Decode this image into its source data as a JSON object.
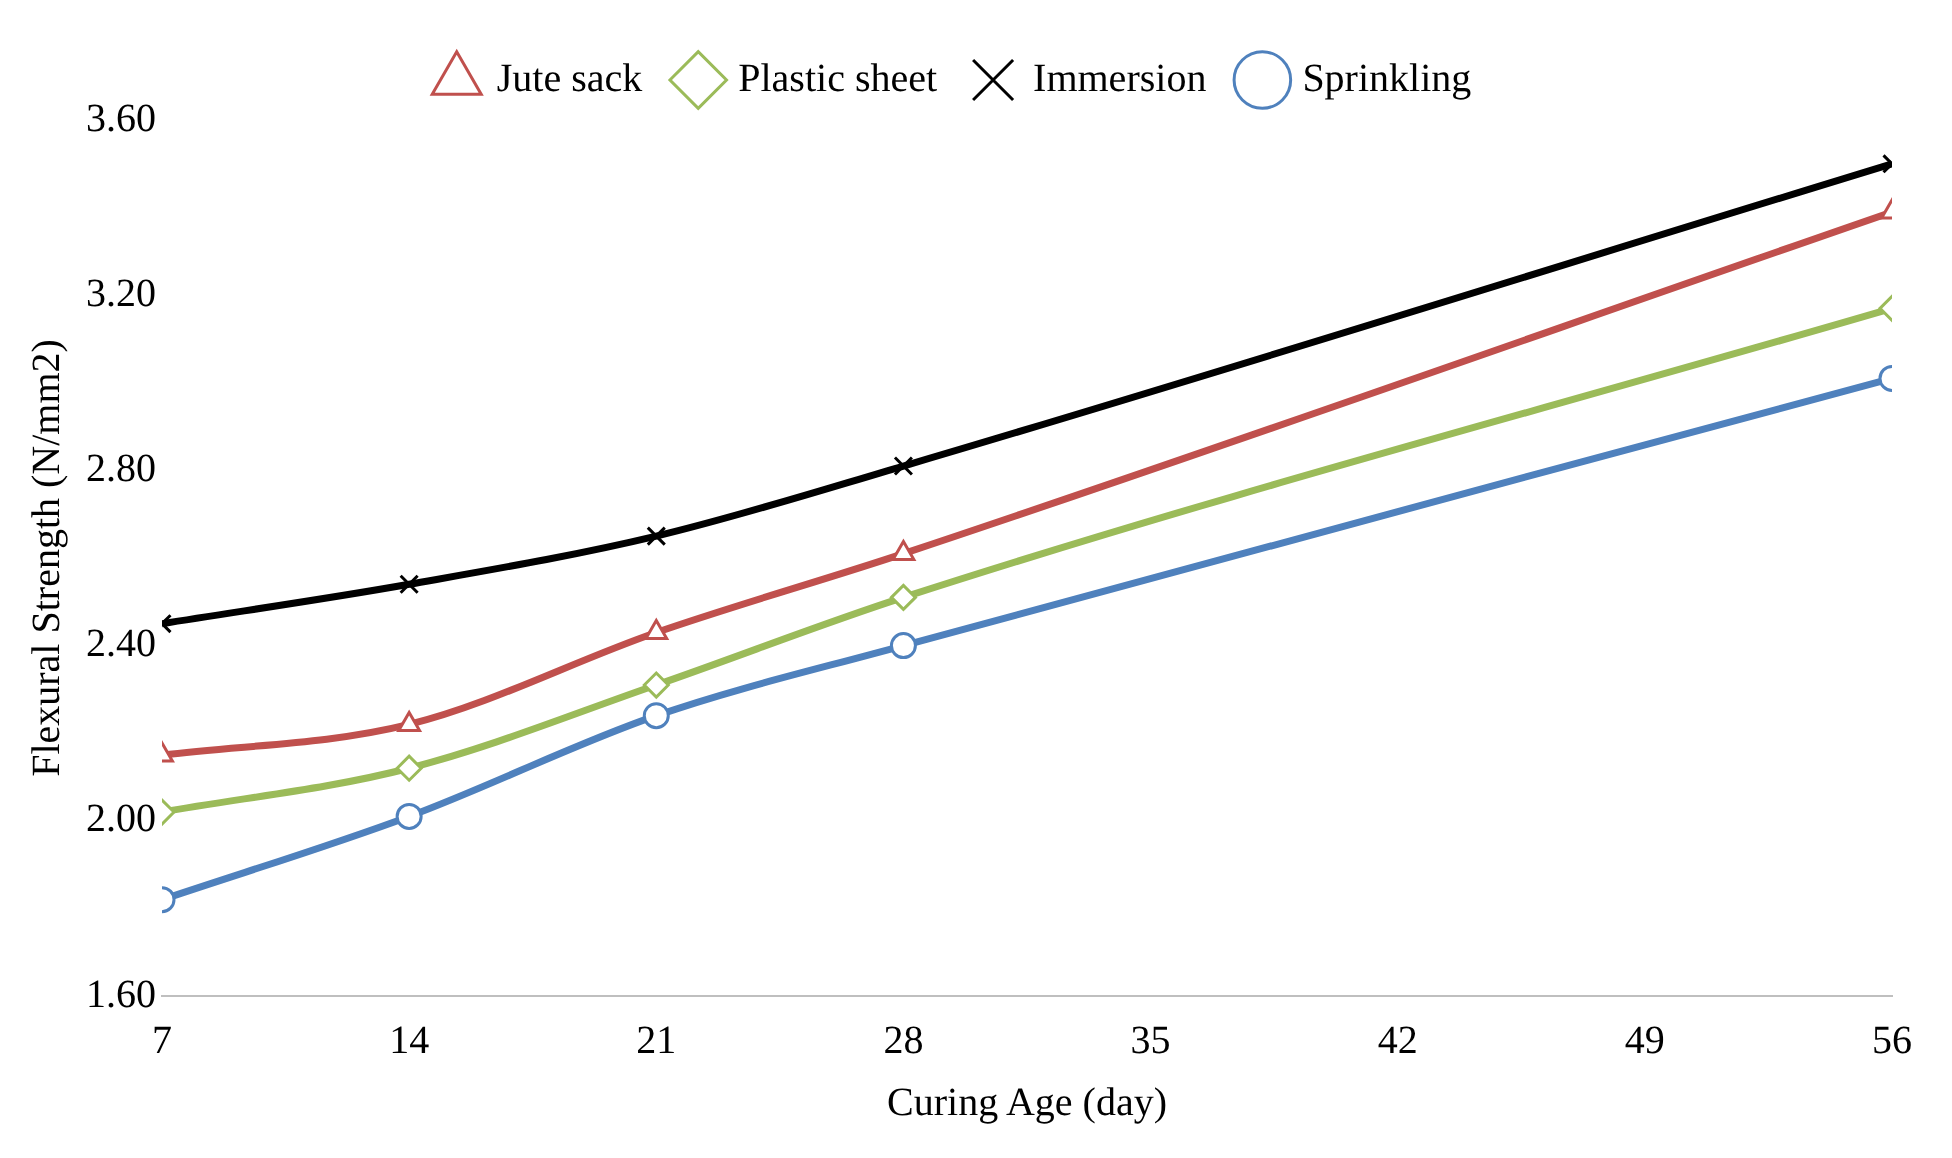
{
  "chart_data": {
    "type": "line",
    "xlabel": "Curing Age (day)",
    "ylabel": "Flexural Strength (N/mm2)",
    "x": [
      7,
      14,
      21,
      28,
      56
    ],
    "series": [
      {
        "name": "Jute sack",
        "color": "#c0504d",
        "marker": "triangle",
        "values": [
          2.15,
          2.22,
          2.43,
          2.61,
          3.39
        ]
      },
      {
        "name": "Plastic sheet",
        "color": "#9bbb59",
        "marker": "diamond",
        "values": [
          2.02,
          2.12,
          2.31,
          2.51,
          3.17
        ]
      },
      {
        "name": "Immersion",
        "color": "#000000",
        "marker": "cross",
        "values": [
          2.45,
          2.54,
          2.65,
          2.81,
          3.5
        ]
      },
      {
        "name": "Sprinkling",
        "color": "#4f81bd",
        "marker": "circle",
        "values": [
          1.82,
          2.01,
          2.24,
          2.4,
          3.01
        ]
      }
    ],
    "xlim": [
      7,
      56
    ],
    "xticks": [
      7,
      14,
      21,
      28,
      35,
      42,
      49,
      56
    ],
    "ylim": [
      1.6,
      3.6
    ],
    "yticks": [
      {
        "value": 1.6,
        "label": "1.60"
      },
      {
        "value": 2,
        "label": "2.00"
      },
      {
        "value": 2.4,
        "label": "2.40"
      },
      {
        "value": 2.8,
        "label": "2.80"
      },
      {
        "value": 3.2,
        "label": "3.20"
      },
      {
        "value": 3.6,
        "label": "3.60"
      }
    ],
    "grid": false,
    "legend": "top",
    "line_style": "solid"
  }
}
